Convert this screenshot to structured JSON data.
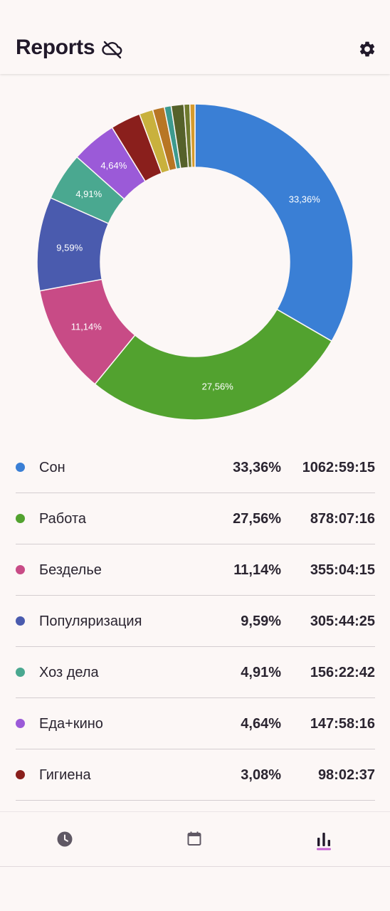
{
  "header": {
    "title": "Reports",
    "cloud_icon": "cloud-off-icon",
    "settings_icon": "gear-icon"
  },
  "chart_data": {
    "type": "pie",
    "slices": [
      {
        "name": "Сон",
        "value": 33.36,
        "label": "33,36%",
        "color": "#3a7fd5"
      },
      {
        "name": "Работа",
        "value": 27.56,
        "label": "27,56%",
        "color": "#52a22f"
      },
      {
        "name": "Безделье",
        "value": 11.14,
        "label": "11,14%",
        "color": "#c84b86"
      },
      {
        "name": "Популяризация",
        "value": 9.59,
        "label": "9,59%",
        "color": "#4a5bae"
      },
      {
        "name": "Хоз дела",
        "value": 4.91,
        "label": "4,91%",
        "color": "#4aa890"
      },
      {
        "name": "Еда+кино",
        "value": 4.64,
        "label": "4,64%",
        "color": "#9b5ad8"
      },
      {
        "name": "Гигиена",
        "value": 3.08,
        "label": "",
        "color": "#8a1f1c"
      },
      {
        "value": 1.4,
        "label": "",
        "color": "#c9b13d"
      },
      {
        "value": 1.2,
        "label": "",
        "color": "#b87624"
      },
      {
        "value": 0.7,
        "label": "",
        "color": "#3d9a8e"
      },
      {
        "value": 1.3,
        "label": "",
        "color": "#55612a"
      },
      {
        "value": 0.6,
        "label": "",
        "color": "#6e7a2e"
      },
      {
        "value": 0.52,
        "label": "",
        "color": "#d69a2b"
      }
    ]
  },
  "legend": {
    "rows": [
      {
        "name": "Сон",
        "percent": "33,36%",
        "time": "1062:59:15",
        "color": "#3a7fd5"
      },
      {
        "name": "Работа",
        "percent": "27,56%",
        "time": "878:07:16",
        "color": "#52a22f"
      },
      {
        "name": "Безделье",
        "percent": "11,14%",
        "time": "355:04:15",
        "color": "#c84b86"
      },
      {
        "name": "Популяризация",
        "percent": "9,59%",
        "time": "305:44:25",
        "color": "#4a5bae"
      },
      {
        "name": "Хоз дела",
        "percent": "4,91%",
        "time": "156:22:42",
        "color": "#4aa890"
      },
      {
        "name": "Еда+кино",
        "percent": "4,64%",
        "time": "147:58:16",
        "color": "#9b5ad8"
      },
      {
        "name": "Гигиена",
        "percent": "3,08%",
        "time": "98:02:37",
        "color": "#8a1f1c"
      }
    ]
  },
  "bottom_nav": {
    "items": [
      {
        "icon": "clock-icon"
      },
      {
        "icon": "calendar-icon"
      },
      {
        "icon": "bar-chart-icon",
        "active": true
      }
    ],
    "active_color": "#c560d2"
  }
}
